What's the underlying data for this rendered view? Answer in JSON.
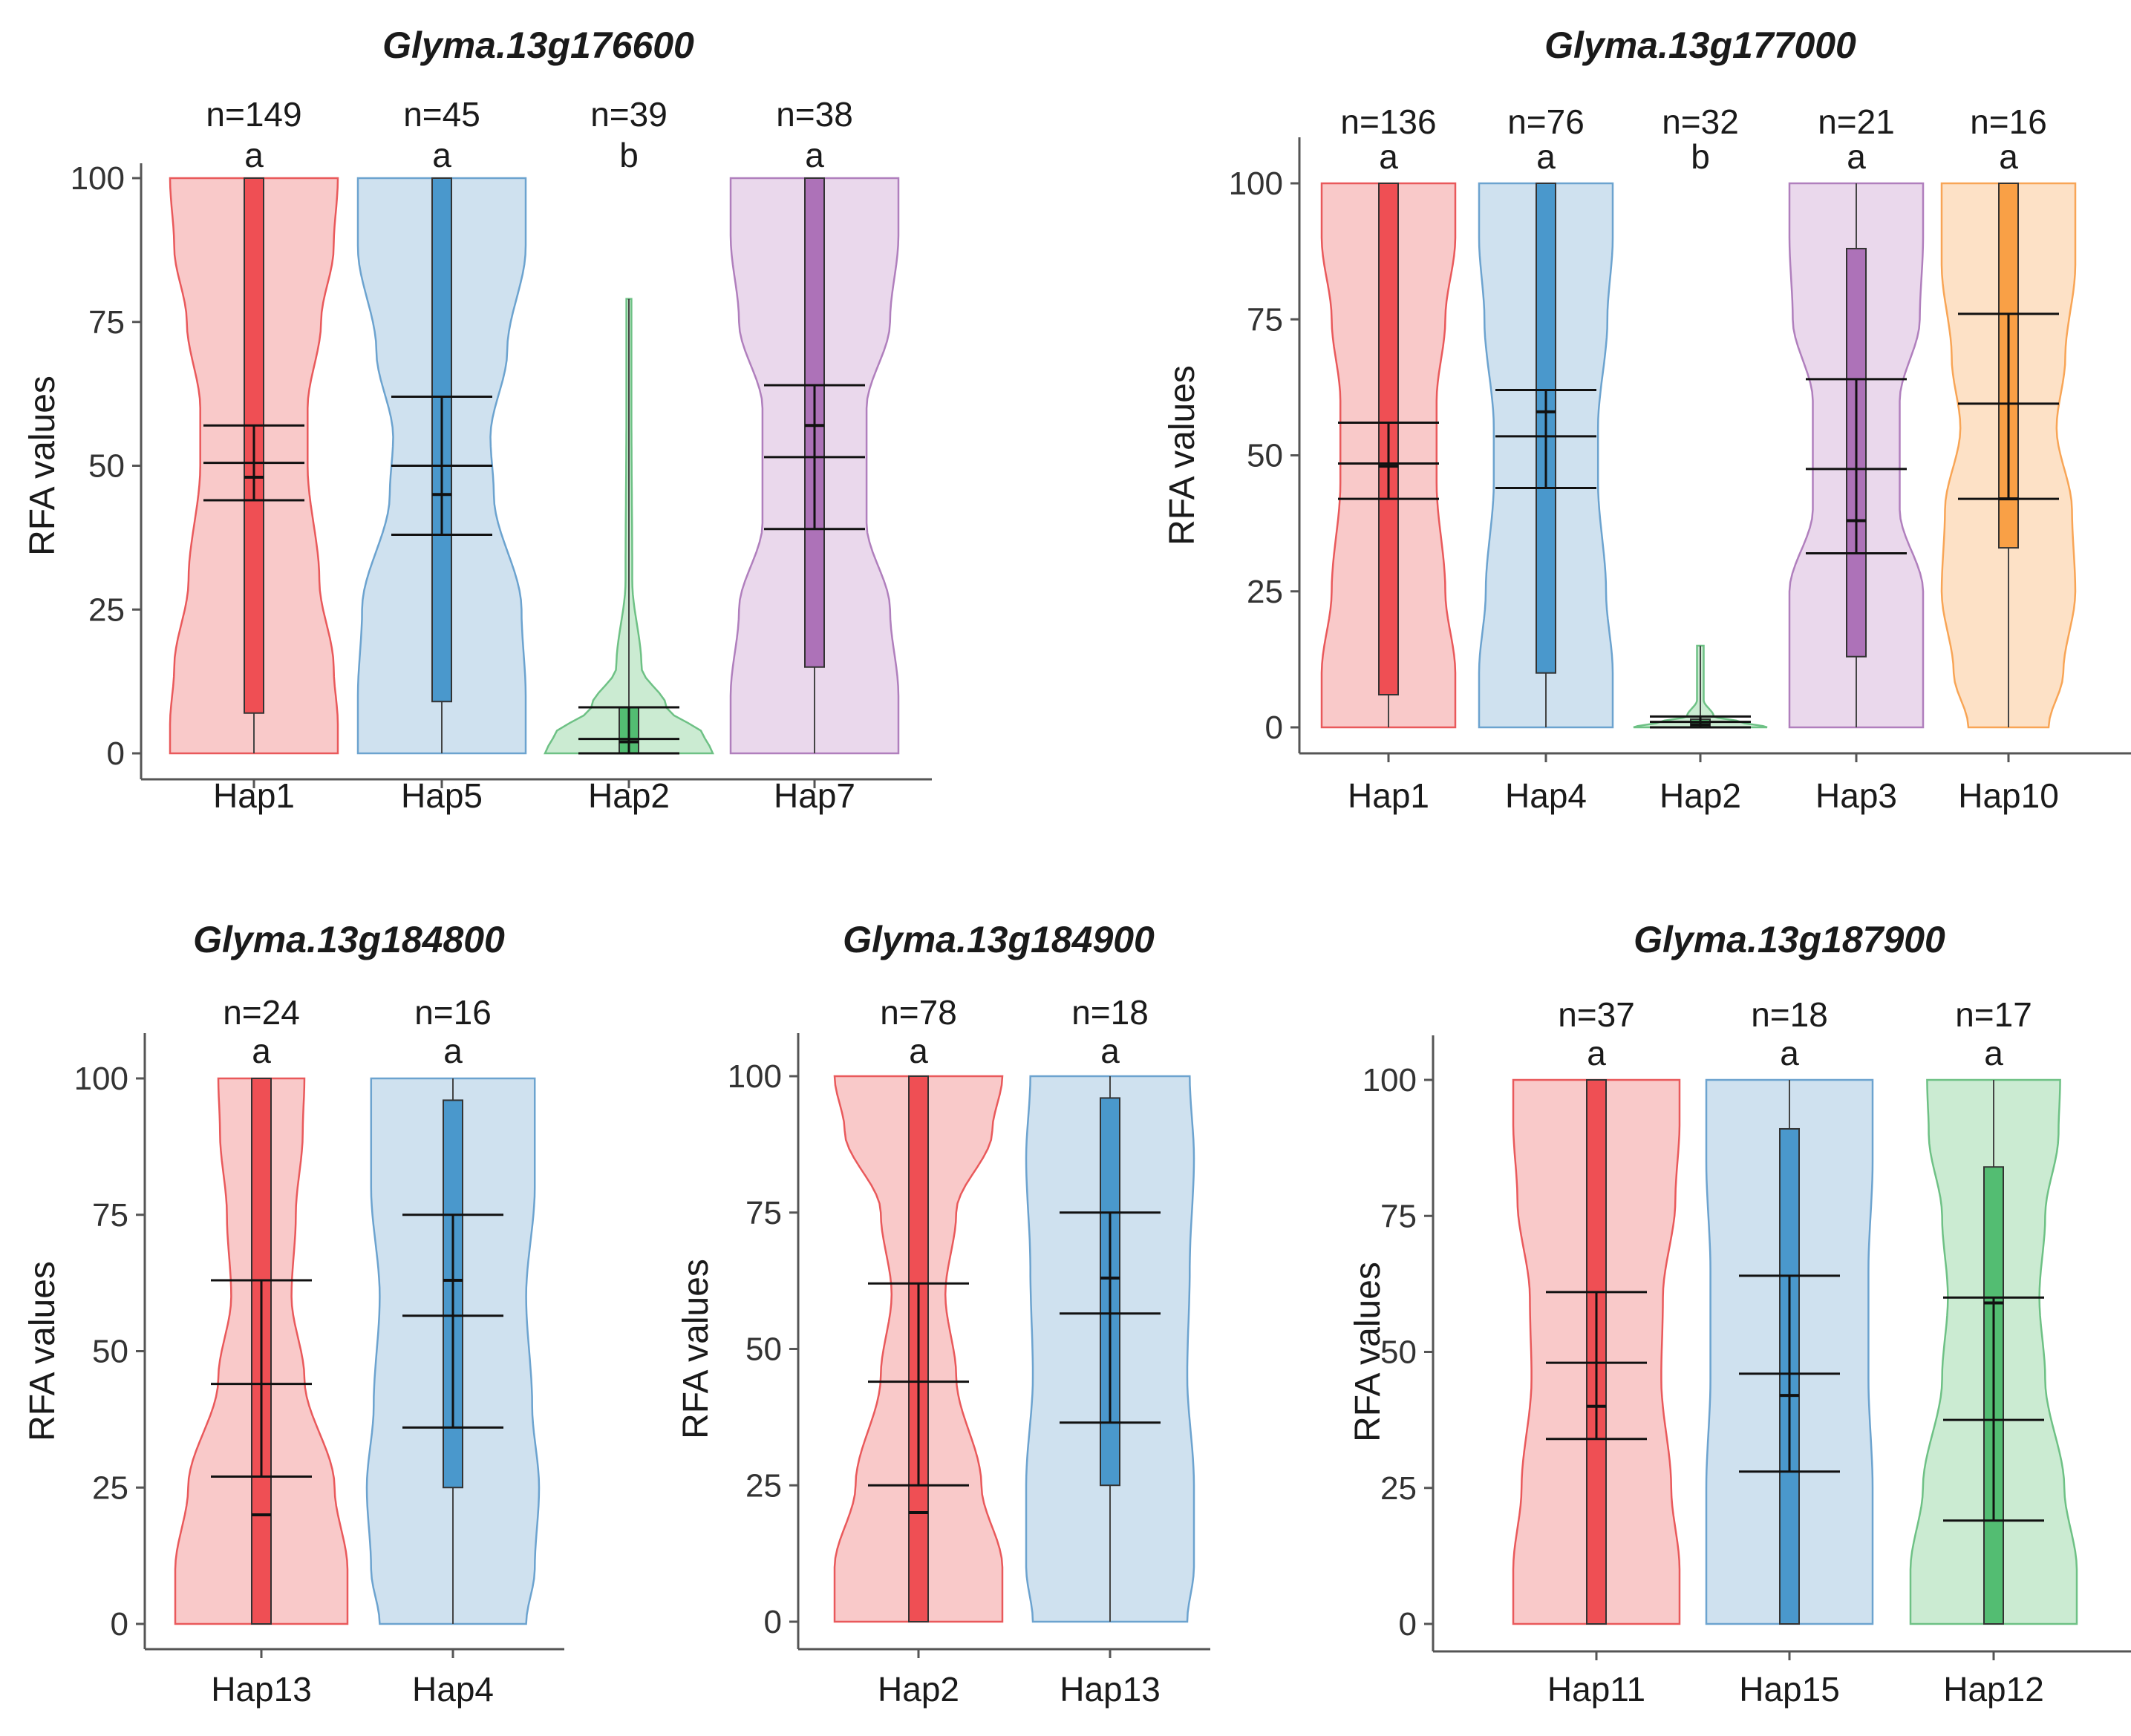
{
  "figure": "RFA values by haplotype for candidate genes",
  "colors": {
    "red": {
      "fill": "#f9c9c9",
      "stroke": "#e9595b",
      "box": "#ef4f54"
    },
    "blue": {
      "fill": "#cfe1ef",
      "stroke": "#6ca3cf",
      "box": "#4a98cc"
    },
    "green": {
      "fill": "#cbebd2",
      "stroke": "#6ec185",
      "box": "#53bd72"
    },
    "purple": {
      "fill": "#ead8ec",
      "stroke": "#b07fbd",
      "box": "#ad72b8"
    },
    "orange": {
      "fill": "#fde1c6",
      "stroke": "#f8a556",
      "box": "#f9a046"
    }
  },
  "chart_data": [
    {
      "type": "violin",
      "title": "Glyma.13g176600",
      "ylabel": "RFA values",
      "ylim": [
        0,
        100
      ],
      "yticks": [
        "0",
        "25",
        "50",
        "75",
        "100"
      ],
      "categories": [
        {
          "name": "Hap1",
          "n_label": "n=149",
          "letter": "a",
          "color": "red",
          "violin": {
            "ymin": 0,
            "ymax": 100,
            "profile": [
              [
                0,
                1.0
              ],
              [
                5,
                1.0
              ],
              [
                15,
                0.95
              ],
              [
                30,
                0.78
              ],
              [
                50,
                0.64
              ],
              [
                60,
                0.64
              ],
              [
                75,
                0.8
              ],
              [
                88,
                0.95
              ],
              [
                100,
                1.0
              ]
            ]
          },
          "box": {
            "q1": 7,
            "q3": 100
          },
          "median": 48,
          "ci": [
            44,
            57
          ],
          "mean": 50.5
        },
        {
          "name": "Hap5",
          "n_label": "n=45",
          "letter": "a",
          "color": "blue",
          "violin": {
            "ymin": 0,
            "ymax": 100,
            "profile": [
              [
                0,
                1.0
              ],
              [
                10,
                1.0
              ],
              [
                25,
                0.95
              ],
              [
                45,
                0.62
              ],
              [
                55,
                0.58
              ],
              [
                70,
                0.78
              ],
              [
                88,
                1.0
              ],
              [
                100,
                1.0
              ]
            ]
          },
          "box": {
            "q1": 9,
            "q3": 100
          },
          "median": 45,
          "ci": [
            38,
            62
          ],
          "mean": 50
        },
        {
          "name": "Hap2",
          "n_label": "n=39",
          "letter": "b",
          "color": "green",
          "violin": {
            "ymin": 0,
            "ymax": 79,
            "profile": [
              [
                0,
                1.0
              ],
              [
                3,
                0.9
              ],
              [
                8,
                0.45
              ],
              [
                15,
                0.15
              ],
              [
                30,
                0.04
              ],
              [
                60,
                0.03
              ],
              [
                79,
                0.03
              ]
            ]
          },
          "box": {
            "q1": 0,
            "q3": 8
          },
          "median": 2,
          "ci": [
            0,
            8
          ],
          "mean": 2.5
        },
        {
          "name": "Hap7",
          "n_label": "n=38",
          "letter": "a",
          "color": "purple",
          "violin": {
            "ymin": 0,
            "ymax": 100,
            "profile": [
              [
                0,
                1.0
              ],
              [
                10,
                1.0
              ],
              [
                25,
                0.9
              ],
              [
                40,
                0.62
              ],
              [
                60,
                0.62
              ],
              [
                75,
                0.9
              ],
              [
                90,
                1.0
              ],
              [
                100,
                1.0
              ]
            ]
          },
          "box": {
            "q1": 15,
            "q3": 100
          },
          "median": 57,
          "ci": [
            39,
            64
          ],
          "mean": 51.5
        }
      ]
    },
    {
      "type": "violin",
      "title": "Glyma.13g177000",
      "ylabel": "RFA values",
      "ylim": [
        0,
        100
      ],
      "yticks": [
        "0",
        "25",
        "50",
        "75",
        "100"
      ],
      "categories": [
        {
          "name": "Hap1",
          "n_label": "n=136",
          "letter": "a",
          "color": "red",
          "violin": {
            "ymin": 0,
            "ymax": 100,
            "profile": [
              [
                0,
                1.0
              ],
              [
                10,
                1.0
              ],
              [
                25,
                0.85
              ],
              [
                45,
                0.72
              ],
              [
                60,
                0.72
              ],
              [
                75,
                0.85
              ],
              [
                90,
                1.0
              ],
              [
                100,
                1.0
              ]
            ]
          },
          "box": {
            "q1": 6,
            "q3": 100
          },
          "median": 48,
          "ci": [
            42,
            56
          ],
          "mean": 48.5
        },
        {
          "name": "Hap4",
          "n_label": "n=76",
          "letter": "a",
          "color": "blue",
          "violin": {
            "ymin": 0,
            "ymax": 100,
            "profile": [
              [
                0,
                1.0
              ],
              [
                10,
                1.0
              ],
              [
                25,
                0.9
              ],
              [
                45,
                0.78
              ],
              [
                55,
                0.78
              ],
              [
                75,
                0.92
              ],
              [
                90,
                1.0
              ],
              [
                100,
                1.0
              ]
            ]
          },
          "box": {
            "q1": 10,
            "q3": 100
          },
          "median": 58,
          "ci": [
            44,
            62
          ],
          "mean": 53.5
        },
        {
          "name": "Hap2",
          "n_label": "n=32",
          "letter": "b",
          "color": "green",
          "violin": {
            "ymin": 0,
            "ymax": 15,
            "profile": [
              [
                0,
                1.0
              ],
              [
                1,
                0.6
              ],
              [
                2,
                0.2
              ],
              [
                5,
                0.05
              ],
              [
                15,
                0.05
              ]
            ]
          },
          "box": {
            "q1": 0,
            "q3": 1.5
          },
          "median": 0.5,
          "ci": [
            0,
            2
          ],
          "mean": 1
        },
        {
          "name": "Hap3",
          "n_label": "n=21",
          "letter": "a",
          "color": "purple",
          "violin": {
            "ymin": 0,
            "ymax": 100,
            "profile": [
              [
                0,
                1.0
              ],
              [
                10,
                1.0
              ],
              [
                25,
                1.0
              ],
              [
                40,
                0.65
              ],
              [
                60,
                0.65
              ],
              [
                75,
                0.95
              ],
              [
                90,
                1.0
              ],
              [
                100,
                1.0
              ]
            ]
          },
          "box": {
            "q1": 13,
            "q3": 88
          },
          "median": 38,
          "ci": [
            32,
            64
          ],
          "mean": 47.5
        },
        {
          "name": "Hap10",
          "n_label": "n=16",
          "letter": "a",
          "color": "orange",
          "violin": {
            "ymin": 0,
            "ymax": 100,
            "profile": [
              [
                0,
                0.6
              ],
              [
                10,
                0.82
              ],
              [
                25,
                1.0
              ],
              [
                40,
                0.95
              ],
              [
                55,
                0.72
              ],
              [
                68,
                0.85
              ],
              [
                85,
                1.0
              ],
              [
                100,
                1.0
              ]
            ]
          },
          "box": {
            "q1": 33,
            "q3": 100
          },
          "median": 42,
          "ci": [
            42,
            76
          ],
          "mean": 59.5
        }
      ]
    },
    {
      "type": "violin",
      "title": "Glyma.13g184800",
      "ylabel": "RFA values",
      "ylim": [
        0,
        100
      ],
      "yticks": [
        "0",
        "25",
        "50",
        "75",
        "100"
      ],
      "categories": [
        {
          "name": "Hap13",
          "n_label": "n=24",
          "letter": "a",
          "color": "red",
          "violin": {
            "ymin": 0,
            "ymax": 100,
            "profile": [
              [
                0,
                1.0
              ],
              [
                10,
                1.0
              ],
              [
                25,
                0.85
              ],
              [
                45,
                0.5
              ],
              [
                60,
                0.35
              ],
              [
                75,
                0.4
              ],
              [
                90,
                0.48
              ],
              [
                100,
                0.5
              ]
            ]
          },
          "box": {
            "q1": 0,
            "q3": 100
          },
          "median": 20,
          "ci": [
            27,
            63
          ],
          "mean": 44
        },
        {
          "name": "Hap4",
          "n_label": "n=16",
          "letter": "a",
          "color": "blue",
          "violin": {
            "ymin": 0,
            "ymax": 100,
            "profile": [
              [
                0,
                0.85
              ],
              [
                10,
                0.95
              ],
              [
                25,
                1.0
              ],
              [
                40,
                0.92
              ],
              [
                60,
                0.85
              ],
              [
                80,
                0.95
              ],
              [
                100,
                0.95
              ]
            ]
          },
          "box": {
            "q1": 25,
            "q3": 96
          },
          "median": 63,
          "ci": [
            36,
            75
          ],
          "mean": 56.5
        }
      ]
    },
    {
      "type": "violin",
      "title": "Glyma.13g184900",
      "ylabel": "RFA values",
      "ylim": [
        0,
        100
      ],
      "yticks": [
        "0",
        "25",
        "50",
        "75",
        "100"
      ],
      "categories": [
        {
          "name": "Hap2",
          "n_label": "n=78",
          "letter": "a",
          "color": "red",
          "violin": {
            "ymin": 0,
            "ymax": 100,
            "profile": [
              [
                0,
                1.0
              ],
              [
                10,
                1.0
              ],
              [
                25,
                0.75
              ],
              [
                45,
                0.45
              ],
              [
                60,
                0.32
              ],
              [
                75,
                0.45
              ],
              [
                90,
                0.88
              ],
              [
                100,
                1.0
              ]
            ]
          },
          "box": {
            "q1": 0,
            "q3": 100
          },
          "median": 20,
          "ci": [
            25,
            62
          ],
          "mean": 44
        },
        {
          "name": "Hap13",
          "n_label": "n=18",
          "letter": "a",
          "color": "blue",
          "violin": {
            "ymin": 0,
            "ymax": 100,
            "profile": [
              [
                0,
                0.92
              ],
              [
                10,
                1.0
              ],
              [
                25,
                1.0
              ],
              [
                45,
                0.92
              ],
              [
                65,
                0.95
              ],
              [
                85,
                1.0
              ],
              [
                100,
                0.95
              ]
            ]
          },
          "box": {
            "q1": 25,
            "q3": 96
          },
          "median": 63,
          "ci": [
            36.5,
            75
          ],
          "mean": 56.5
        }
      ]
    },
    {
      "type": "violin",
      "title": "Glyma.13g187900",
      "ylabel": "RFA values",
      "ylim": [
        0,
        100
      ],
      "yticks": [
        "0",
        "25",
        "50",
        "75",
        "100"
      ],
      "categories": [
        {
          "name": "Hap11",
          "n_label": "n=37",
          "letter": "a",
          "color": "red",
          "violin": {
            "ymin": 0,
            "ymax": 100,
            "profile": [
              [
                0,
                1.0
              ],
              [
                10,
                1.0
              ],
              [
                25,
                0.9
              ],
              [
                45,
                0.78
              ],
              [
                60,
                0.8
              ],
              [
                78,
                0.95
              ],
              [
                92,
                1.0
              ],
              [
                100,
                1.0
              ]
            ]
          },
          "box": {
            "q1": 0,
            "q3": 100
          },
          "median": 40,
          "ci": [
            34,
            61
          ],
          "mean": 48
        },
        {
          "name": "Hap15",
          "n_label": "n=18",
          "letter": "a",
          "color": "blue",
          "violin": {
            "ymin": 0,
            "ymax": 100,
            "profile": [
              [
                0,
                1.0
              ],
              [
                10,
                1.0
              ],
              [
                25,
                1.0
              ],
              [
                45,
                0.95
              ],
              [
                65,
                0.95
              ],
              [
                85,
                1.0
              ],
              [
                100,
                1.0
              ]
            ]
          },
          "box": {
            "q1": 0,
            "q3": 91
          },
          "median": 42,
          "ci": [
            28,
            64
          ],
          "mean": 46
        },
        {
          "name": "Hap12",
          "n_label": "n=17",
          "letter": "a",
          "color": "green",
          "violin": {
            "ymin": 0,
            "ymax": 100,
            "profile": [
              [
                0,
                1.0
              ],
              [
                10,
                1.0
              ],
              [
                25,
                0.85
              ],
              [
                45,
                0.62
              ],
              [
                60,
                0.55
              ],
              [
                75,
                0.62
              ],
              [
                90,
                0.78
              ],
              [
                100,
                0.8
              ]
            ]
          },
          "box": {
            "q1": 0,
            "q3": 84
          },
          "median": 59,
          "ci": [
            19,
            60
          ],
          "mean": 37.5
        }
      ]
    }
  ]
}
